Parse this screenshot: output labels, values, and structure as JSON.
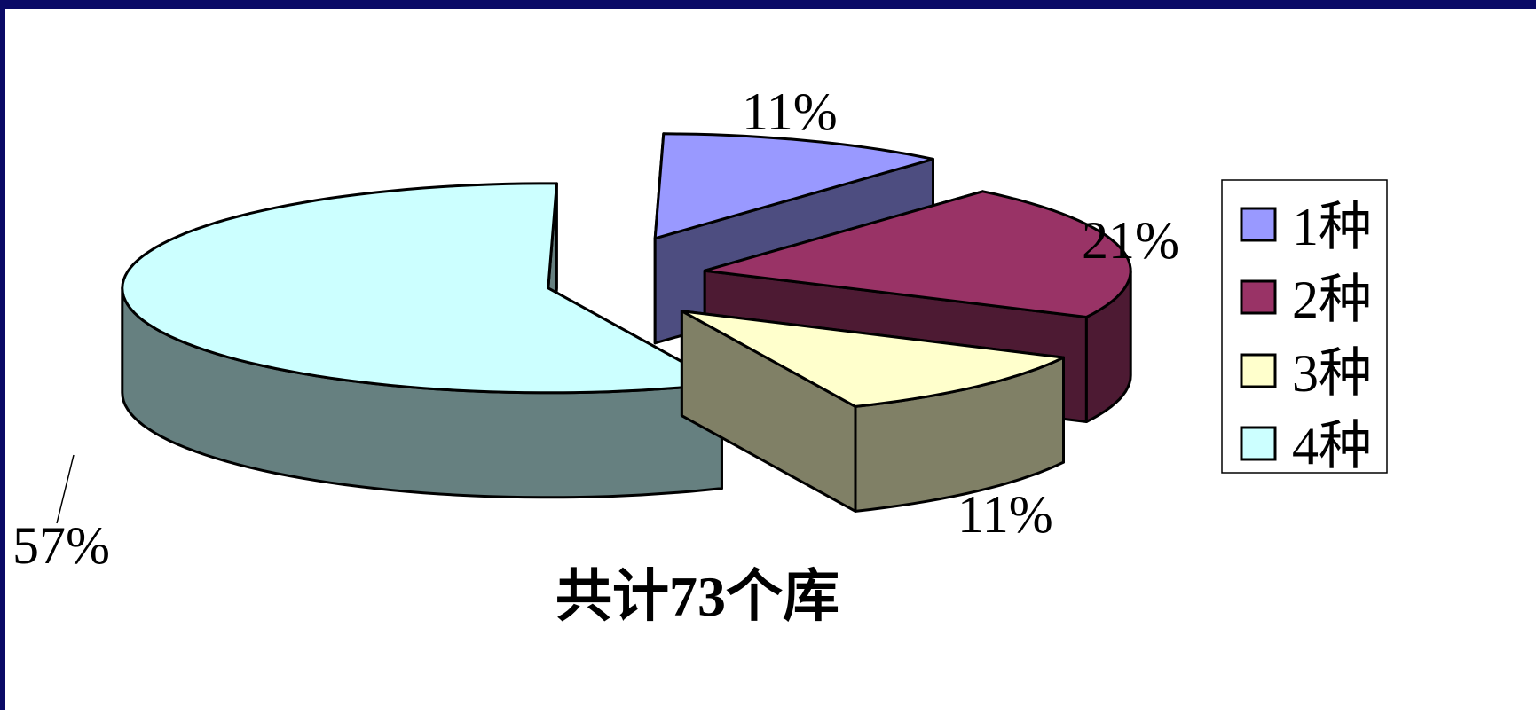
{
  "chart_data": {
    "type": "pie",
    "title": "",
    "caption": "共计73个库",
    "categories": [
      "1种",
      "2种",
      "3种",
      "4种"
    ],
    "values": [
      11,
      21,
      11,
      57
    ],
    "data_labels": [
      "11%",
      "21%",
      "11%",
      "57%"
    ],
    "legend_position": "right",
    "exploded": true,
    "style_3d": true,
    "colors": {
      "1种": {
        "top": "#9999ff",
        "side": "#4d4d80"
      },
      "2种": {
        "top": "#993366",
        "side": "#4d1a33"
      },
      "3种": {
        "top": "#ffffcc",
        "side": "#808066"
      },
      "4种": {
        "top": "#ccffff",
        "side": "#668080"
      }
    }
  },
  "frame": {
    "border_color": "#0a0a66",
    "background": "#ffffff"
  }
}
